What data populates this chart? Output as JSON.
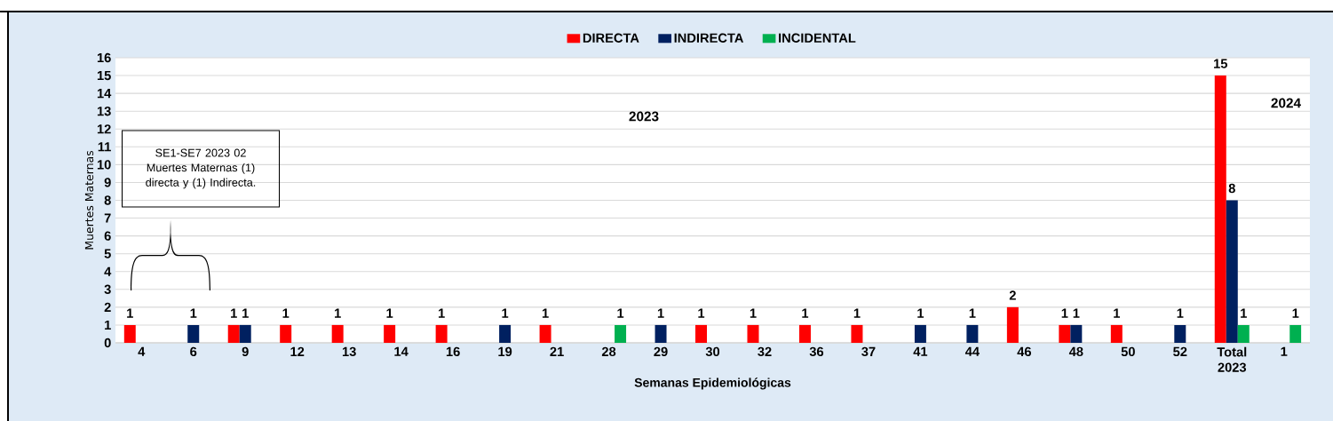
{
  "chart_data": {
    "type": "bar",
    "categories": [
      "4",
      "6",
      "9",
      "12",
      "13",
      "14",
      "16",
      "19",
      "21",
      "28",
      "29",
      "30",
      "32",
      "36",
      "37",
      "41",
      "44",
      "46",
      "48",
      "50",
      "52",
      "Total 2023",
      "1"
    ],
    "series": [
      {
        "name": "DIRECTA",
        "color": "#ff0000",
        "values": [
          1,
          null,
          1,
          1,
          1,
          1,
          1,
          null,
          1,
          null,
          null,
          1,
          1,
          1,
          1,
          null,
          null,
          2,
          1,
          1,
          null,
          15,
          null
        ]
      },
      {
        "name": "INDIRECTA",
        "color": "#002060",
        "values": [
          null,
          1,
          1,
          null,
          null,
          null,
          null,
          1,
          null,
          null,
          1,
          null,
          null,
          null,
          null,
          1,
          1,
          null,
          1,
          null,
          1,
          8,
          null
        ]
      },
      {
        "name": "INCIDENTAL",
        "color": "#00b050",
        "values": [
          null,
          null,
          null,
          null,
          null,
          null,
          null,
          null,
          null,
          1,
          null,
          null,
          null,
          null,
          null,
          null,
          null,
          null,
          null,
          null,
          null,
          1,
          1
        ]
      }
    ],
    "xlabel": "Semanas Epidemiológicas",
    "ylabel": "Muertes Maternas",
    "ylim": [
      0,
      16
    ],
    "yticks": [
      0,
      1,
      2,
      3,
      4,
      5,
      6,
      7,
      8,
      9,
      10,
      11,
      12,
      13,
      14,
      15,
      16
    ],
    "grid": "y",
    "legend": "top",
    "data_labels": true,
    "annotations": [
      "2023",
      "2024",
      "SE1-SE7 2023 02 Muertes Maternas (1) directa y (1) Indirecta."
    ]
  }
}
